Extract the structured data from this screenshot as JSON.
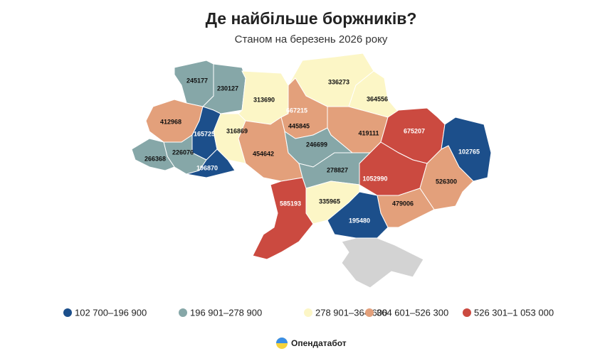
{
  "chart_data": {
    "type": "choropleth",
    "title": "Де найбільше боржників?",
    "subtitle": "Станом на березень 2026 року",
    "values": [
      245177,
      230127,
      313690,
      336273,
      364556,
      667215,
      412968,
      165725,
      316869,
      445845,
      419111,
      675207,
      102765,
      226076,
      266368,
      196870,
      454642,
      246699,
      278827,
      1052990,
      526300,
      585193,
      335965,
      479006,
      195480
    ],
    "legend": [
      {
        "label": "102 700–196 900",
        "range": [
          102700,
          196900
        ],
        "color": "#1c4f8b"
      },
      {
        "label": "196 901–278 900",
        "range": [
          196901,
          278900
        ],
        "color": "#86a7a8"
      },
      {
        "label": "278 901–364 600",
        "range": [
          278901,
          364600
        ],
        "color": "#fcf6c6"
      },
      {
        "label": "364 601–526 300",
        "range": [
          364601,
          526300
        ],
        "color": "#e3a07b"
      },
      {
        "label": "526 301–1 053 000",
        "range": [
          526301,
          1053000
        ],
        "color": "#cb4a40"
      }
    ],
    "source": "Опендатабот"
  }
}
